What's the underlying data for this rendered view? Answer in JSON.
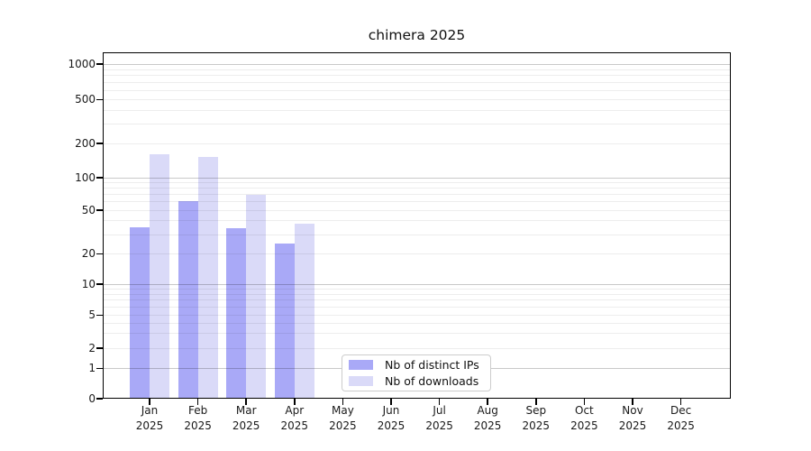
{
  "title": "chimera 2025",
  "legend": {
    "items": [
      {
        "label": "Nb of distinct IPs",
        "color": "#a9a9f7"
      },
      {
        "label": "Nb of downloads",
        "color": "#dadaf8"
      }
    ]
  },
  "chart_data": {
    "type": "bar",
    "title": "chimera 2025",
    "categories": [
      "Jan 2025",
      "Feb 2025",
      "Mar 2025",
      "Apr 2025",
      "May 2025",
      "Jun 2025",
      "Jul 2025",
      "Aug 2025",
      "Sep 2025",
      "Oct 2025",
      "Nov 2025",
      "Dec 2025"
    ],
    "series": [
      {
        "name": "Nb of distinct IPs",
        "color": "#a9a9f7",
        "values": [
          35,
          61,
          34,
          25,
          null,
          null,
          null,
          null,
          null,
          null,
          null,
          null
        ]
      },
      {
        "name": "Nb of downloads",
        "color": "#dadaf8",
        "values": [
          160,
          151,
          69,
          38,
          null,
          null,
          null,
          null,
          null,
          null,
          null,
          null
        ]
      }
    ],
    "xlabel": "",
    "ylabel": "",
    "yscale": "symlog",
    "yticks": [
      0,
      1,
      2,
      5,
      10,
      20,
      50,
      100,
      200,
      500,
      1000
    ],
    "ylim": [
      0,
      1300
    ],
    "grid": true,
    "legend_position": "lower center"
  }
}
